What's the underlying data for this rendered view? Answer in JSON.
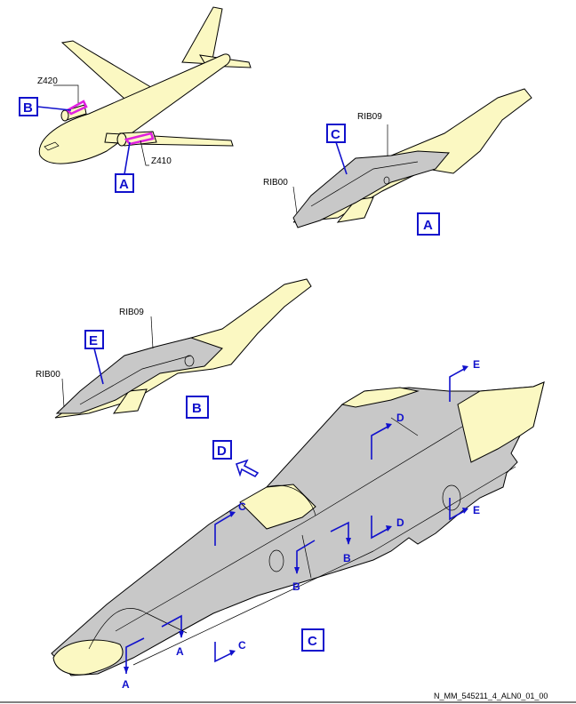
{
  "zones": {
    "z420": "Z420",
    "z410": "Z410"
  },
  "ribs": {
    "rib00": "RIB00",
    "rib09": "RIB09"
  },
  "boxes": {
    "a": "A",
    "b": "B",
    "c": "C",
    "d": "D",
    "e": "E"
  },
  "views": {
    "a": "A",
    "b": "B",
    "c": "C",
    "d": "D",
    "e": "E"
  },
  "footer": {
    "reference": "N_MM_545211_4_ALN0_01_00"
  },
  "colors": {
    "callout": "#1111cc",
    "highlight": "#e020e0",
    "cream": "#fbf8c2",
    "grey": "#c8c8c8"
  }
}
